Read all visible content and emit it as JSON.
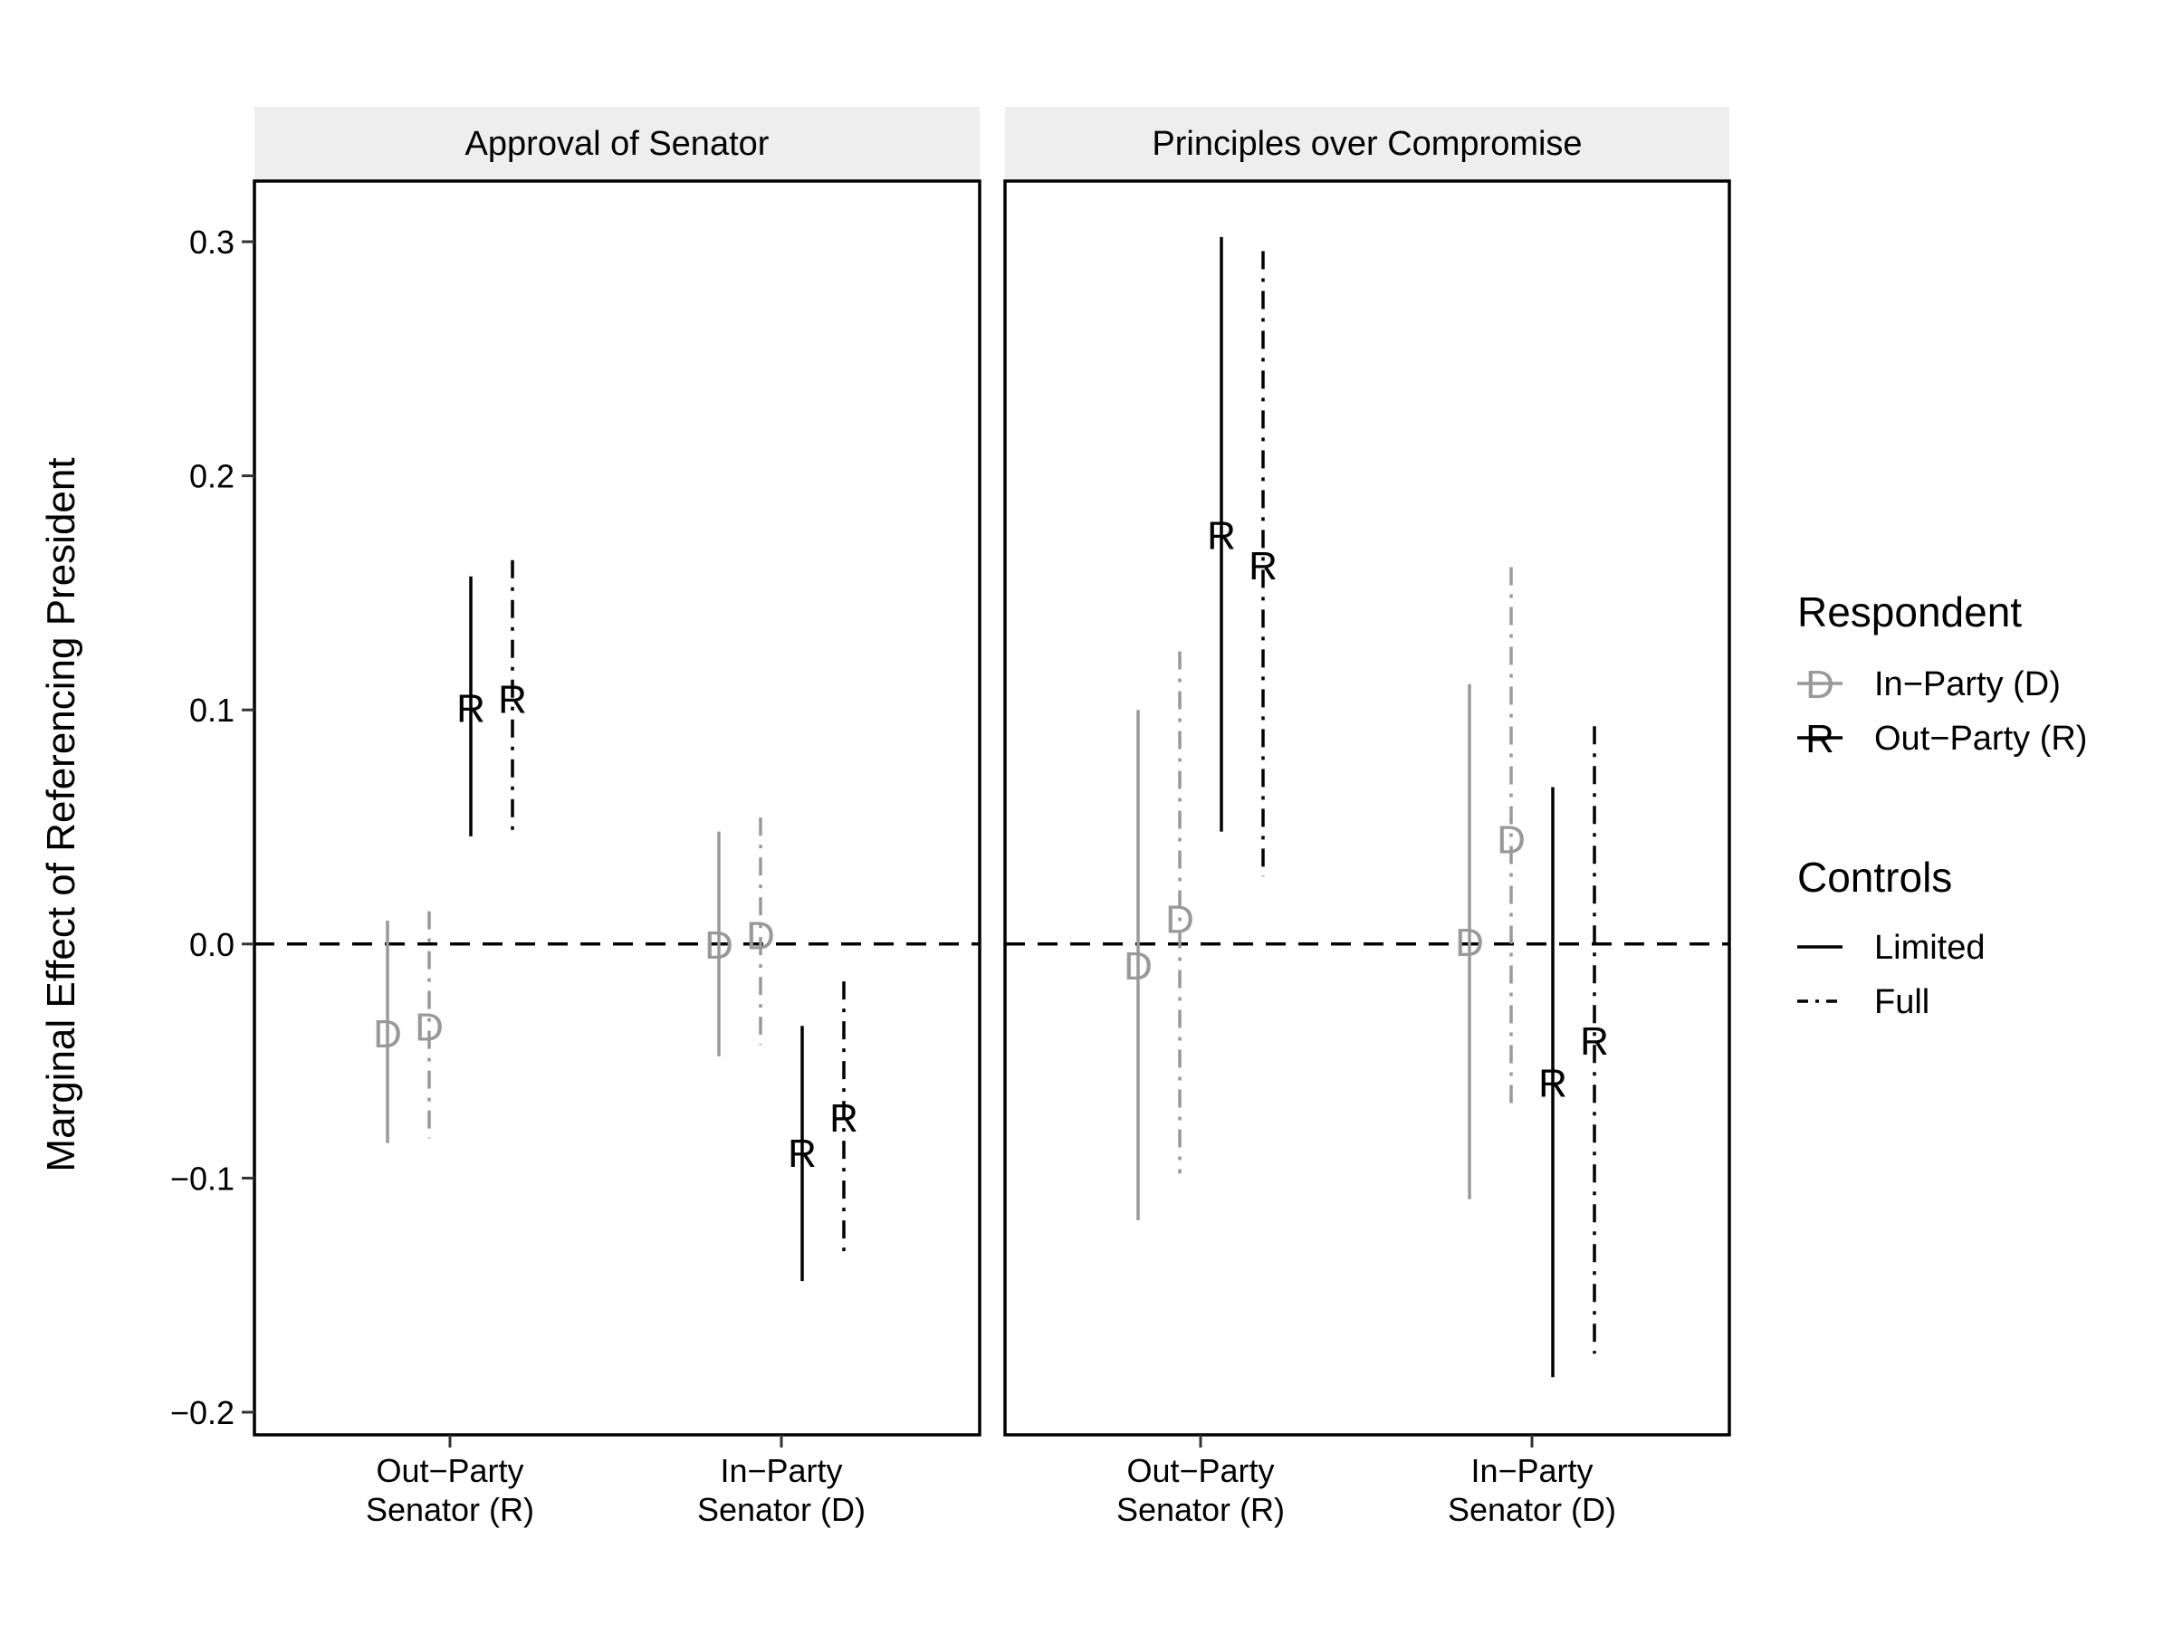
{
  "chart_data": {
    "type": "errorbar",
    "ylabel": "Marginal Effect of Referencing President",
    "xlabel": "",
    "ylim": [
      -0.2,
      0.3
    ],
    "yticks": [
      0.3,
      0.2,
      0.1,
      0.0,
      -0.1,
      -0.2
    ],
    "ytick_labels": [
      "0.3",
      "0.2",
      "0.1",
      "0.0",
      "−0.1",
      "−0.2"
    ],
    "reference_line": 0.0,
    "grid": false,
    "legend_position": "right",
    "categories": [
      {
        "line1": "Out−Party",
        "line2": "Senator (R)"
      },
      {
        "line1": "In−Party",
        "line2": "Senator (D)"
      }
    ],
    "respondent_legend": {
      "title": "Respondent",
      "items": [
        {
          "key": "D",
          "label": "In−Party (D)",
          "color": "#999999"
        },
        {
          "key": "R",
          "label": "Out−Party (R)",
          "color": "#000000"
        }
      ]
    },
    "controls_legend": {
      "title": "Controls",
      "items": [
        {
          "key": "limited",
          "label": "Limited",
          "linetype": "solid"
        },
        {
          "key": "full",
          "label": "Full",
          "linetype": "dotdash"
        }
      ]
    },
    "panels": [
      {
        "title": "Approval of Senator",
        "points": [
          {
            "category": 0,
            "respondent": "D",
            "controls": "limited",
            "estimate": -0.038,
            "lower": -0.085,
            "upper": 0.01
          },
          {
            "category": 0,
            "respondent": "D",
            "controls": "full",
            "estimate": -0.035,
            "lower": -0.083,
            "upper": 0.014
          },
          {
            "category": 0,
            "respondent": "R",
            "controls": "limited",
            "estimate": 0.101,
            "lower": 0.046,
            "upper": 0.157
          },
          {
            "category": 0,
            "respondent": "R",
            "controls": "full",
            "estimate": 0.105,
            "lower": 0.047,
            "upper": 0.164
          },
          {
            "category": 1,
            "respondent": "D",
            "controls": "limited",
            "estimate": 0.0,
            "lower": -0.048,
            "upper": 0.048
          },
          {
            "category": 1,
            "respondent": "D",
            "controls": "full",
            "estimate": 0.004,
            "lower": -0.043,
            "upper": 0.054
          },
          {
            "category": 1,
            "respondent": "R",
            "controls": "limited",
            "estimate": -0.089,
            "lower": -0.144,
            "upper": -0.035
          },
          {
            "category": 1,
            "respondent": "R",
            "controls": "full",
            "estimate": -0.074,
            "lower": -0.132,
            "upper": -0.016
          }
        ]
      },
      {
        "title": "Principles over Compromise",
        "points": [
          {
            "category": 0,
            "respondent": "D",
            "controls": "limited",
            "estimate": -0.009,
            "lower": -0.118,
            "upper": 0.1
          },
          {
            "category": 0,
            "respondent": "D",
            "controls": "full",
            "estimate": 0.011,
            "lower": -0.098,
            "upper": 0.125
          },
          {
            "category": 0,
            "respondent": "R",
            "controls": "limited",
            "estimate": 0.175,
            "lower": 0.048,
            "upper": 0.302
          },
          {
            "category": 0,
            "respondent": "R",
            "controls": "full",
            "estimate": 0.162,
            "lower": 0.029,
            "upper": 0.296
          },
          {
            "category": 1,
            "respondent": "D",
            "controls": "limited",
            "estimate": 0.001,
            "lower": -0.109,
            "upper": 0.111
          },
          {
            "category": 1,
            "respondent": "D",
            "controls": "full",
            "estimate": 0.045,
            "lower": -0.07,
            "upper": 0.161
          },
          {
            "category": 1,
            "respondent": "R",
            "controls": "limited",
            "estimate": -0.059,
            "lower": -0.185,
            "upper": 0.067
          },
          {
            "category": 1,
            "respondent": "R",
            "controls": "full",
            "estimate": -0.041,
            "lower": -0.175,
            "upper": 0.093
          }
        ]
      }
    ]
  }
}
